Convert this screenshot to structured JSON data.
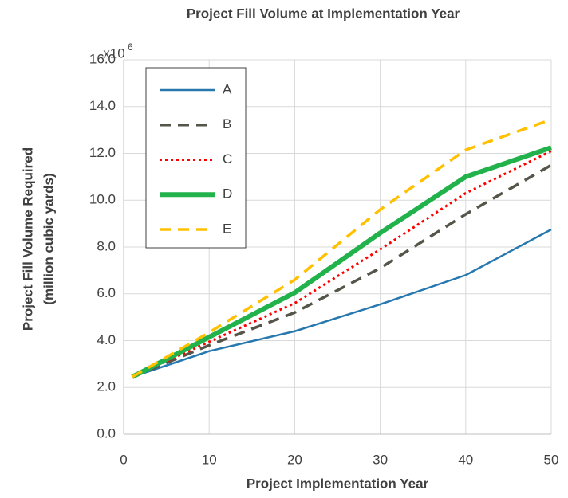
{
  "chart_data": {
    "type": "line",
    "title": "Project Fill Volume at Implementation Year",
    "x_label": "Project Implementation Year",
    "y_label": [
      "Project Fill Volume Required",
      "(million cubic yards)"
    ],
    "y_multiplier": {
      "base": "x10",
      "exponent": "6"
    },
    "x": [
      1,
      10,
      20,
      30,
      40,
      50
    ],
    "xlim": [
      0,
      50
    ],
    "xticks": [
      0,
      10,
      20,
      30,
      40,
      50
    ],
    "ylim": [
      0,
      16
    ],
    "yticks": [
      {
        "value": 0,
        "label": "0.0"
      },
      {
        "value": 2,
        "label": "2.0"
      },
      {
        "value": 4,
        "label": "4.0"
      },
      {
        "value": 6,
        "label": "6.0"
      },
      {
        "value": 8,
        "label": "8.0"
      },
      {
        "value": 10,
        "label": "10.0"
      },
      {
        "value": 12,
        "label": "12.0"
      },
      {
        "value": 14,
        "label": "14.0"
      },
      {
        "value": 16,
        "label": "16.0"
      }
    ],
    "grid": true,
    "legend": "upper left",
    "series": [
      {
        "name": "A",
        "color": "#2878b0",
        "style": "solid",
        "values": [
          2.45,
          3.55,
          4.4,
          5.55,
          6.8,
          8.75
        ]
      },
      {
        "name": "B",
        "color": "#555549",
        "style": "dashed",
        "values": [
          2.45,
          3.8,
          5.2,
          7.1,
          9.4,
          11.5
        ]
      },
      {
        "name": "C",
        "color": "#ff0000",
        "style": "dotted",
        "values": [
          2.45,
          3.95,
          5.6,
          7.9,
          10.3,
          12.1
        ]
      },
      {
        "name": "D",
        "color": "#22b24c",
        "style": "solid-thick",
        "values": [
          2.45,
          4.15,
          6.05,
          8.6,
          11.0,
          12.25
        ]
      },
      {
        "name": "E",
        "color": "#ffc000",
        "style": "dashed",
        "values": [
          2.45,
          4.35,
          6.6,
          9.6,
          12.15,
          13.45
        ]
      }
    ]
  }
}
